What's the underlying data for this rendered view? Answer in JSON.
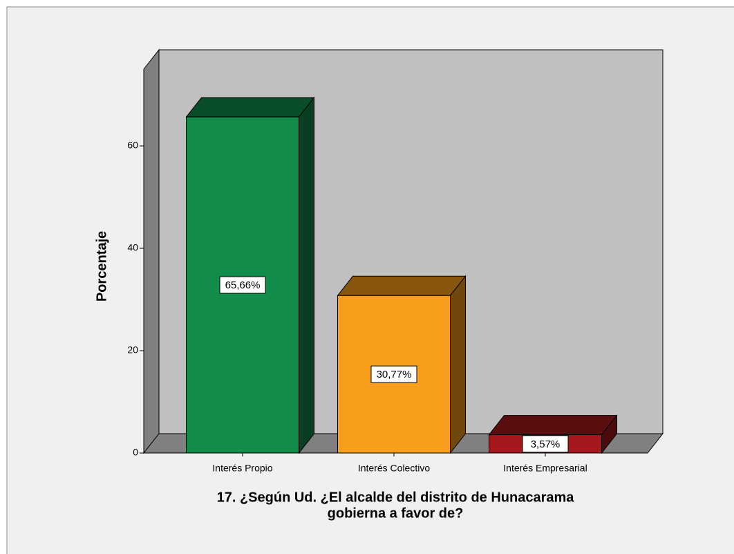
{
  "chart_data": {
    "type": "bar3d",
    "title": [
      "17. ¿Según Ud. ¿El alcalde del distrito de Hunacarama",
      "gobierna a favor de?"
    ],
    "y_label": "Porcentaje",
    "categories": [
      "Interés Propio",
      "Interés Colectivo",
      "Interés Empresarial"
    ],
    "values": [
      65.66,
      30.77,
      3.57
    ],
    "value_labels": [
      "65,66%",
      "30,77%",
      "3,57%"
    ],
    "colors": [
      "#118c4a",
      "#f99d1c",
      "#a5191d"
    ],
    "ylim": [
      0,
      75
    ],
    "yticks": [
      0,
      20,
      40,
      60
    ]
  }
}
